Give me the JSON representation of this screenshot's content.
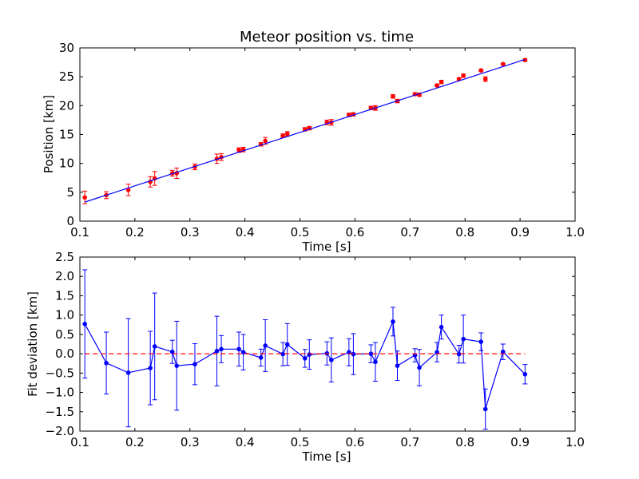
{
  "chart_data": [
    {
      "type": "scatter",
      "title": "Meteor position vs. time",
      "xlabel": "Time [s]",
      "ylabel": "Position [km]",
      "xlim": [
        0.1,
        1.0
      ],
      "ylim": [
        0,
        30
      ],
      "xticks": [
        "0.1",
        "0.2",
        "0.3",
        "0.4",
        "0.5",
        "0.6",
        "0.7",
        "0.8",
        "0.9",
        "1.0"
      ],
      "yticks": [
        "0",
        "5",
        "10",
        "15",
        "20",
        "25",
        "30"
      ],
      "grid": false,
      "series": [
        {
          "kind": "points-with-errorbars",
          "color": "#ff0000",
          "x": [
            0.109,
            0.148,
            0.188,
            0.228,
            0.236,
            0.268,
            0.276,
            0.309,
            0.349,
            0.357,
            0.389,
            0.397,
            0.429,
            0.437,
            0.469,
            0.477,
            0.509,
            0.517,
            0.549,
            0.557,
            0.589,
            0.597,
            0.629,
            0.637,
            0.669,
            0.677,
            0.709,
            0.717,
            0.749,
            0.757,
            0.789,
            0.797,
            0.829,
            0.837,
            0.869,
            0.909
          ],
          "y": [
            4.1,
            4.5,
            5.4,
            6.8,
            7.4,
            8.3,
            8.3,
            9.4,
            10.8,
            11.1,
            12.3,
            12.4,
            13.3,
            13.9,
            14.8,
            15.1,
            15.9,
            16.1,
            17.1,
            17.1,
            18.4,
            18.5,
            19.6,
            19.6,
            21.6,
            20.8,
            22.0,
            21.9,
            23.5,
            24.1,
            24.6,
            25.2,
            26.1,
            24.6,
            27.2,
            27.9
          ],
          "err": [
            1.1,
            0.6,
            1.0,
            0.9,
            1.2,
            0.5,
            0.9,
            0.5,
            0.8,
            0.6,
            0.4,
            0.4,
            0.3,
            0.6,
            0.3,
            0.4,
            0.3,
            0.3,
            0.4,
            0.5,
            0.3,
            0.3,
            0.3,
            0.4,
            0.3,
            0.3,
            0.2,
            0.3,
            0.2,
            0.3,
            0.2,
            0.3,
            0.2,
            0.4,
            0.1,
            0.2
          ]
        },
        {
          "kind": "fit-line",
          "color": "#0000ff",
          "x": [
            0.109,
            0.909
          ],
          "y": [
            3.3,
            28.0
          ]
        }
      ]
    },
    {
      "type": "line",
      "xlabel": "Time [s]",
      "ylabel": "Fit deviation [km]",
      "xlim": [
        0.1,
        1.0
      ],
      "ylim": [
        -2.0,
        2.5
      ],
      "xticks": [
        "0.1",
        "0.2",
        "0.3",
        "0.4",
        "0.5",
        "0.6",
        "0.7",
        "0.8",
        "0.9",
        "1.0"
      ],
      "yticks": [
        "−2.0",
        "−1.5",
        "−1.0",
        "−0.5",
        "0.0",
        "0.5",
        "1.0",
        "1.5",
        "2.0",
        "2.5"
      ],
      "grid": false,
      "series": [
        {
          "kind": "line-with-errorbars",
          "color": "#0000ff",
          "x": [
            0.109,
            0.148,
            0.188,
            0.228,
            0.236,
            0.268,
            0.276,
            0.309,
            0.349,
            0.357,
            0.389,
            0.397,
            0.429,
            0.437,
            0.469,
            0.477,
            0.509,
            0.517,
            0.549,
            0.557,
            0.589,
            0.597,
            0.629,
            0.637,
            0.669,
            0.677,
            0.709,
            0.717,
            0.749,
            0.757,
            0.789,
            0.797,
            0.829,
            0.837,
            0.869,
            0.909
          ],
          "y": [
            0.77,
            -0.24,
            -0.49,
            -0.37,
            0.19,
            0.05,
            -0.31,
            -0.27,
            0.07,
            0.12,
            0.12,
            0.04,
            -0.1,
            0.21,
            -0.01,
            0.24,
            -0.12,
            -0.02,
            0.01,
            -0.16,
            0.04,
            -0.01,
            0.0,
            -0.21,
            0.83,
            -0.31,
            -0.04,
            -0.36,
            0.04,
            0.69,
            -0.01,
            0.38,
            0.31,
            -1.43,
            0.05,
            -0.53
          ],
          "err": [
            1.4,
            0.8,
            1.4,
            0.95,
            1.38,
            0.3,
            1.15,
            0.53,
            0.9,
            0.35,
            0.44,
            0.46,
            0.22,
            0.67,
            0.3,
            0.54,
            0.23,
            0.38,
            0.3,
            0.57,
            0.35,
            0.53,
            0.23,
            0.5,
            0.37,
            0.38,
            0.17,
            0.47,
            0.25,
            0.31,
            0.23,
            0.62,
            0.23,
            0.52,
            0.2,
            0.25
          ]
        },
        {
          "kind": "reference-line",
          "color": "#ff0000",
          "style": "dashed",
          "x": [
            0.109,
            0.909
          ],
          "y": [
            0,
            0
          ]
        }
      ]
    }
  ]
}
